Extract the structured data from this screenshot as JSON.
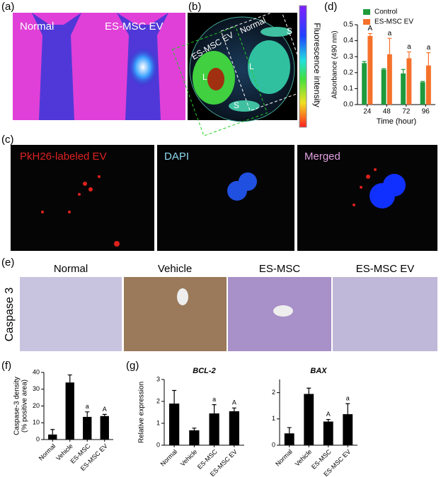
{
  "panels": {
    "a": "(a)",
    "b": "(b)",
    "c": "(c)",
    "d": "(d)",
    "e": "(e)",
    "f": "(f)",
    "g": "(g)"
  },
  "panel_a": {
    "labels": [
      "Normal",
      "ES-MSC EV"
    ]
  },
  "panel_b": {
    "labels": [
      "ES-MSC EV",
      "Normal",
      "L",
      "L",
      "S",
      "S"
    ],
    "colorbar_label": "Fluorescence intensity"
  },
  "panel_c": {
    "labels": [
      "PkH26-labeled EV",
      "DAPI",
      "Merged"
    ]
  },
  "panel_e": {
    "row_label": "Caspase 3",
    "labels": [
      "Normal",
      "Vehicle",
      "ES-MSC",
      "ES-MSC EV"
    ]
  },
  "chart_data": [
    {
      "type": "bar",
      "xlabel": "Time (hour)",
      "ylabel": "Absorbance (490 nm)",
      "categories": [
        "24",
        "48",
        "72",
        "96"
      ],
      "series": [
        {
          "name": "Control",
          "color": "#1e9a3c",
          "values": [
            0.26,
            0.22,
            0.195,
            0.14
          ],
          "errors": [
            0.01,
            0.005,
            0.025,
            0.005
          ]
        },
        {
          "name": "ES-MSC EV",
          "color": "#f5712a",
          "values": [
            0.43,
            0.315,
            0.29,
            0.245
          ],
          "errors": [
            0.015,
            0.1,
            0.04,
            0.08
          ],
          "annotations": [
            "A",
            "a",
            "a",
            "a"
          ]
        }
      ],
      "legend": "top",
      "ylim": [
        0,
        0.5
      ],
      "yticks": [
        {
          "value": 0,
          "label": "0.0"
        },
        {
          "value": 0.1,
          "label": "0.1"
        },
        {
          "value": 0.2,
          "label": "0.2"
        },
        {
          "value": 0.3,
          "label": "0.3"
        },
        {
          "value": 0.4,
          "label": "0.4"
        },
        {
          "value": 0.5,
          "label": "0.5"
        }
      ]
    },
    {
      "type": "bar",
      "ylabel": [
        "Caspase-3 density",
        "(% positive area)"
      ],
      "categories": [
        "Normal",
        "Vehicle",
        "ES-MSC",
        "ES-MSC EV"
      ],
      "values": [
        3,
        34,
        13.5,
        14
      ],
      "errors": [
        3,
        4.5,
        3,
        1
      ],
      "annotations": [
        null,
        null,
        "a",
        "A"
      ],
      "color": "#000000",
      "ylim": [
        0,
        40
      ],
      "yticks": [
        0,
        10,
        20,
        30,
        40
      ]
    },
    {
      "type": "bar",
      "title": "BCL-2",
      "ylabel": "Relative expression",
      "categories": [
        "Normal",
        "Vehicle",
        "ES-MSC",
        "ES-MSC EV"
      ],
      "values": [
        1.9,
        0.68,
        1.45,
        1.55
      ],
      "errors": [
        0.6,
        0.1,
        0.4,
        0.15
      ],
      "annotations": [
        null,
        null,
        "a",
        "A"
      ],
      "color": "#000000",
      "ylim": [
        0,
        3
      ],
      "yticks": [
        0,
        1,
        2,
        3
      ]
    },
    {
      "type": "bar",
      "title": "BAX",
      "categories": [
        "Normal",
        "Vehicle",
        "ES-MSC",
        "ES-MSC EV"
      ],
      "values": [
        0.45,
        1.95,
        0.9,
        1.18
      ],
      "errors": [
        0.22,
        0.22,
        0.08,
        0.4
      ],
      "annotations": [
        null,
        null,
        "A",
        "a"
      ],
      "color": "#000000",
      "ylim": [
        0,
        2.5
      ],
      "yticks": [
        0,
        1,
        2
      ]
    }
  ]
}
